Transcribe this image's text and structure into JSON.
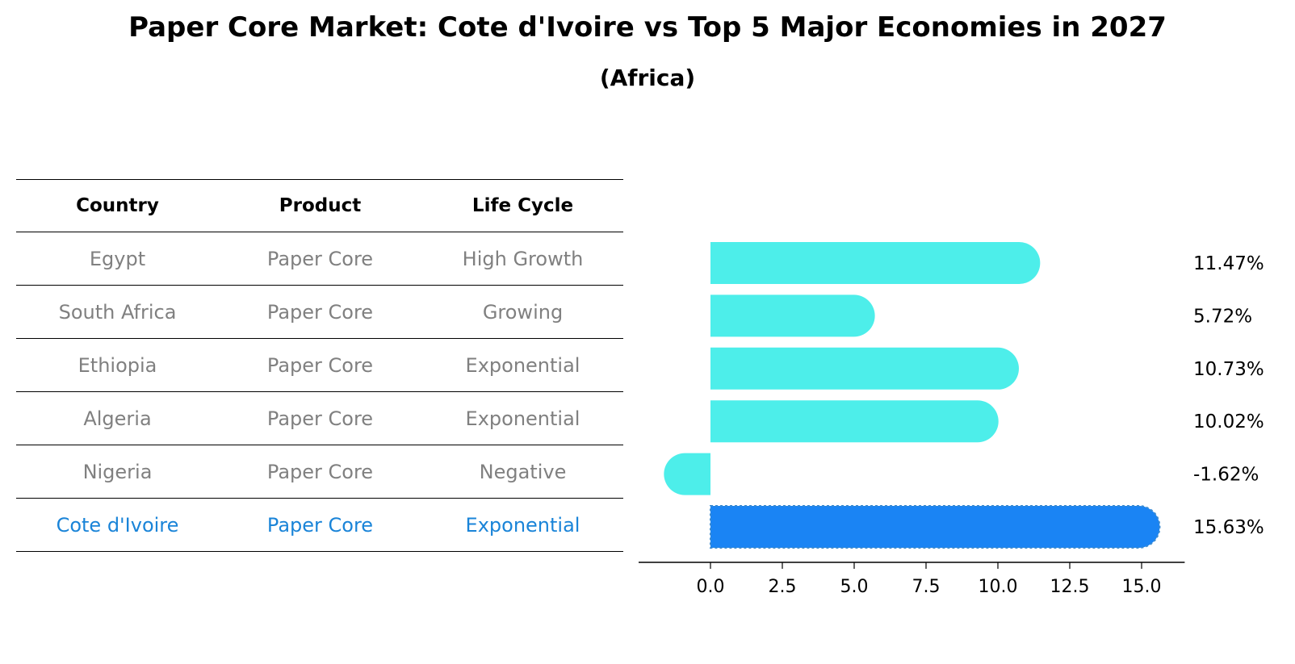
{
  "title": "Paper Core Market: Cote d'Ivoire vs Top 5 Major Economies in 2027",
  "subtitle": "(Africa)",
  "table": {
    "headers": [
      "Country",
      "Product",
      "Life Cycle"
    ],
    "rows": [
      [
        "Egypt",
        "Paper Core",
        "High Growth"
      ],
      [
        "South Africa",
        "Paper Core",
        "Growing"
      ],
      [
        "Ethiopia",
        "Paper Core",
        "Exponential"
      ],
      [
        "Algeria",
        "Paper Core",
        "Exponential"
      ],
      [
        "Nigeria",
        "Paper Core",
        "Negative"
      ],
      [
        "Cote d'Ivoire",
        "Paper Core",
        "Exponential"
      ]
    ]
  },
  "chart_data": {
    "type": "bar",
    "orientation": "horizontal",
    "categories": [
      "Egypt",
      "South Africa",
      "Ethiopia",
      "Algeria",
      "Nigeria",
      "Cote d'Ivoire"
    ],
    "values": [
      11.47,
      5.72,
      10.73,
      10.02,
      -1.62,
      15.63
    ],
    "value_labels": [
      "11.47%",
      "5.72%",
      "10.73%",
      "10.02%",
      "-1.62%",
      "15.63%"
    ],
    "highlight_index": 5,
    "xlim": [
      -2.5,
      16.5
    ],
    "xticks": [
      0.0,
      2.5,
      5.0,
      7.5,
      10.0,
      12.5,
      15.0
    ],
    "xtick_labels": [
      "0.0",
      "2.5",
      "5.0",
      "7.5",
      "10.0",
      "12.5",
      "15.0"
    ],
    "colors": {
      "bar": "#4deeea",
      "highlight": "#1a84f4"
    }
  }
}
